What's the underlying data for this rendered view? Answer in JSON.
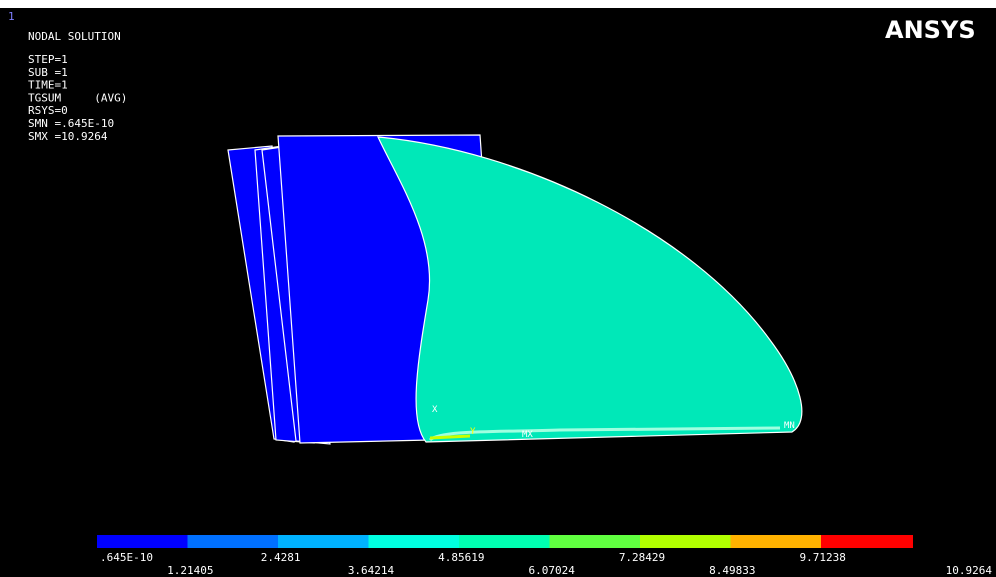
{
  "window_number": "1",
  "header": {
    "title": "NODAL SOLUTION",
    "logo": "ANSYS"
  },
  "info": [
    "STEP=1",
    "SUB =1",
    "TIME=1",
    "TGSUM     (AVG)",
    "RSYS=0",
    "SMN =.645E-10",
    "SMX =10.9264"
  ],
  "markers": {
    "max": "MX",
    "min": "MN",
    "x_axis": "X",
    "y_axis": "Y"
  },
  "legend": {
    "labels": [
      ".645E-10",
      "1.21405",
      "2.4281",
      "3.64214",
      "4.85619",
      "6.07024",
      "7.28429",
      "8.49833",
      "9.71238",
      "10.9264"
    ]
  }
}
